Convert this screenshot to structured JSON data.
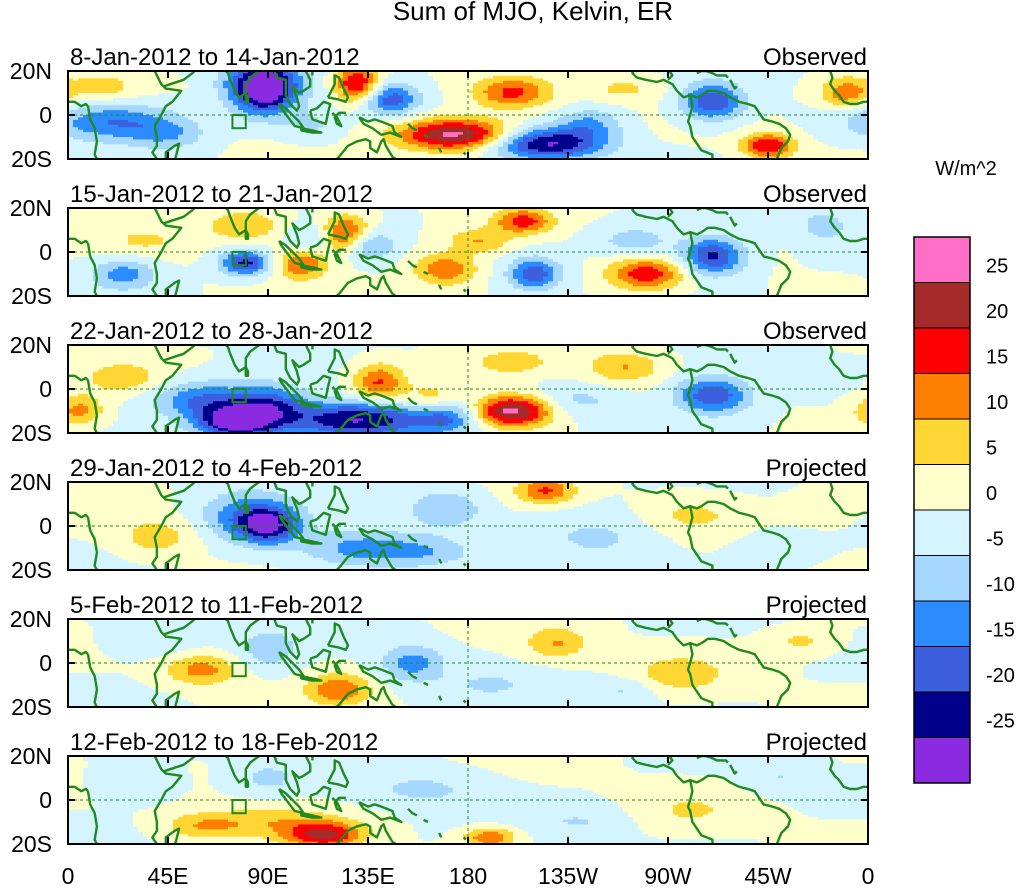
{
  "chart_data": {
    "type": "heatmap",
    "title": "Sum of MJO, Kelvin, ER",
    "units": "W/m^2",
    "x_ticks": [
      "0",
      "45E",
      "90E",
      "135E",
      "180",
      "135W",
      "90W",
      "45W",
      "0"
    ],
    "y_ticks": [
      "20N",
      "0",
      "20S"
    ],
    "lon_range": [
      0,
      360
    ],
    "lat_range": [
      -20,
      20
    ],
    "colorbar": {
      "labels": [
        "25",
        "20",
        "15",
        "10",
        "5",
        "0",
        "-5",
        "-10",
        "-15",
        "-20",
        "-25"
      ],
      "colors": [
        "#ff6ec7",
        "#a52a2a",
        "#ff0000",
        "#ff7f00",
        "#ffd633",
        "#ffffcc",
        "#d4f4ff",
        "#a6d8ff",
        "#2b8cff",
        "#3c5fe0",
        "#00008b",
        "#8a2be2"
      ]
    },
    "panels": [
      {
        "label": "8-Jan-2012 to 14-Jan-2012",
        "kind": "Observed",
        "blobs": [
          [
            88,
            14,
            -25,
            12,
            8
          ],
          [
            88,
            10,
            -12,
            8,
            8
          ],
          [
            130,
            14,
            22,
            7,
            6
          ],
          [
            145,
            7,
            -18,
            9,
            5
          ],
          [
            175,
            -9,
            28,
            18,
            5
          ],
          [
            215,
            -13,
            -26,
            18,
            5
          ],
          [
            20,
            -3,
            -15,
            20,
            6
          ],
          [
            45,
            -9,
            -8,
            12,
            5
          ],
          [
            200,
            10,
            16,
            12,
            5
          ],
          [
            235,
            -4,
            -10,
            10,
            5
          ],
          [
            290,
            6,
            -20,
            10,
            6
          ],
          [
            315,
            -14,
            20,
            8,
            4
          ],
          [
            350,
            10,
            14,
            8,
            5
          ],
          [
            250,
            12,
            6,
            12,
            4
          ],
          [
            15,
            13,
            8,
            10,
            4
          ],
          [
            110,
            -5,
            -6,
            10,
            5
          ]
        ]
      },
      {
        "label": "15-Jan-2012 to 21-Jan-2012",
        "kind": "Observed",
        "blobs": [
          [
            80,
            -5,
            -22,
            8,
            4
          ],
          [
            105,
            -5,
            15,
            8,
            5
          ],
          [
            125,
            8,
            20,
            8,
            6
          ],
          [
            135,
            3,
            -14,
            8,
            5
          ],
          [
            110,
            5,
            -8,
            8,
            5
          ],
          [
            205,
            14,
            17,
            9,
            4
          ],
          [
            260,
            -10,
            18,
            12,
            5
          ],
          [
            290,
            -2,
            -22,
            10,
            6
          ],
          [
            210,
            -10,
            -18,
            8,
            5
          ],
          [
            170,
            -8,
            15,
            10,
            5
          ],
          [
            25,
            -10,
            -12,
            10,
            5
          ],
          [
            80,
            12,
            10,
            12,
            5
          ],
          [
            35,
            5,
            5,
            15,
            5
          ],
          [
            255,
            5,
            -8,
            12,
            5
          ],
          [
            340,
            12,
            -8,
            8,
            5
          ],
          [
            185,
            5,
            10,
            10,
            4
          ]
        ]
      },
      {
        "label": "22-Jan-2012 to 28-Jan-2012",
        "kind": "Observed",
        "blobs": [
          [
            90,
            -8,
            -18,
            12,
            7
          ],
          [
            60,
            -5,
            -15,
            15,
            6
          ],
          [
            75,
            -15,
            -28,
            12,
            5
          ],
          [
            130,
            -14,
            -26,
            22,
            6
          ],
          [
            170,
            -12,
            -15,
            10,
            6
          ],
          [
            200,
            -10,
            28,
            12,
            5
          ],
          [
            140,
            3,
            16,
            8,
            6
          ],
          [
            165,
            -5,
            12,
            10,
            5
          ],
          [
            290,
            -3,
            -20,
            12,
            6
          ],
          [
            250,
            10,
            10,
            12,
            5
          ],
          [
            200,
            12,
            8,
            12,
            4
          ],
          [
            25,
            5,
            8,
            12,
            5
          ],
          [
            5,
            -10,
            12,
            8,
            5
          ],
          [
            230,
            -5,
            -6,
            15,
            5
          ]
        ]
      },
      {
        "label": "29-Jan-2012 to 4-Feb-2012",
        "kind": "Projected",
        "blobs": [
          [
            90,
            0,
            -22,
            10,
            6
          ],
          [
            80,
            5,
            -12,
            15,
            8
          ],
          [
            130,
            -10,
            -12,
            18,
            6
          ],
          [
            170,
            8,
            -10,
            12,
            6
          ],
          [
            215,
            16,
            15,
            9,
            4
          ],
          [
            240,
            -5,
            -6,
            20,
            8
          ],
          [
            280,
            5,
            6,
            15,
            6
          ],
          [
            40,
            -5,
            8,
            12,
            6
          ],
          [
            160,
            -12,
            -8,
            15,
            5
          ],
          [
            320,
            -10,
            -5,
            12,
            5
          ],
          [
            340,
            8,
            5,
            10,
            5
          ]
        ]
      },
      {
        "label": "5-Feb-2012 to 11-Feb-2012",
        "kind": "Projected",
        "blobs": [
          [
            60,
            -3,
            12,
            12,
            5
          ],
          [
            122,
            -12,
            14,
            10,
            5
          ],
          [
            155,
            0,
            -12,
            10,
            6
          ],
          [
            90,
            6,
            -8,
            10,
            7
          ],
          [
            220,
            9,
            10,
            10,
            5
          ],
          [
            275,
            -5,
            8,
            15,
            6
          ],
          [
            40,
            10,
            -5,
            15,
            6
          ],
          [
            190,
            -10,
            -5,
            15,
            5
          ],
          [
            330,
            10,
            6,
            10,
            4
          ],
          [
            250,
            -12,
            -6,
            10,
            4
          ]
        ]
      },
      {
        "label": "12-Feb-2012 to 18-Feb-2012",
        "kind": "Projected",
        "blobs": [
          [
            115,
            -16,
            20,
            12,
            4
          ],
          [
            90,
            -10,
            8,
            25,
            5
          ],
          [
            190,
            -17,
            15,
            8,
            3
          ],
          [
            60,
            -12,
            7,
            12,
            4
          ],
          [
            280,
            -5,
            5,
            15,
            6
          ],
          [
            160,
            5,
            -6,
            20,
            6
          ],
          [
            30,
            8,
            -5,
            12,
            6
          ],
          [
            230,
            -10,
            -5,
            15,
            5
          ],
          [
            90,
            10,
            -6,
            10,
            5
          ],
          [
            320,
            10,
            -5,
            10,
            5
          ]
        ]
      }
    ]
  }
}
